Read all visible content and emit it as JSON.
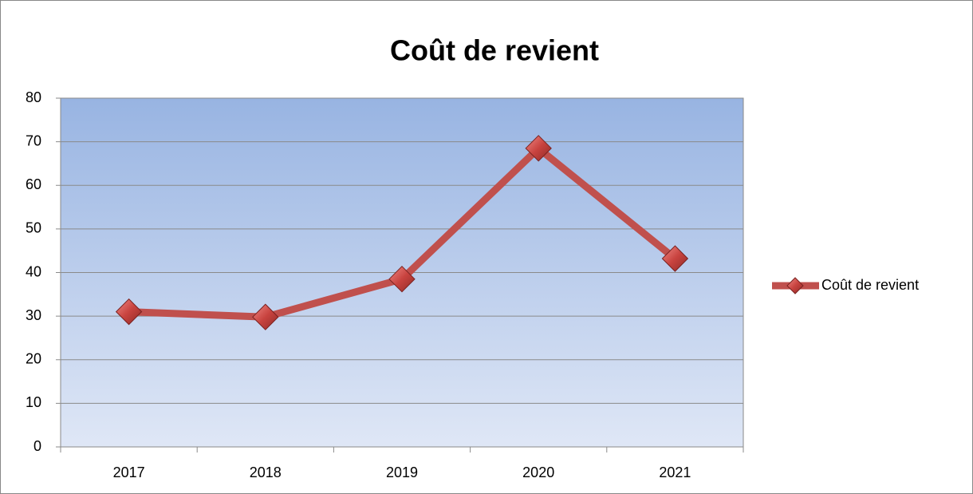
{
  "chart_data": {
    "type": "line",
    "title": "Coût de revient",
    "categories": [
      "2017",
      "2018",
      "2019",
      "2020",
      "2021"
    ],
    "series": [
      {
        "name": "Coût de revient",
        "color": "#c0504d",
        "values": [
          31,
          29.8,
          38.5,
          68.5,
          43.2
        ]
      }
    ],
    "ylim": [
      0,
      80
    ],
    "yticks": [
      0,
      10,
      20,
      30,
      40,
      50,
      60,
      70,
      80
    ],
    "grid": true,
    "legend": "right"
  }
}
